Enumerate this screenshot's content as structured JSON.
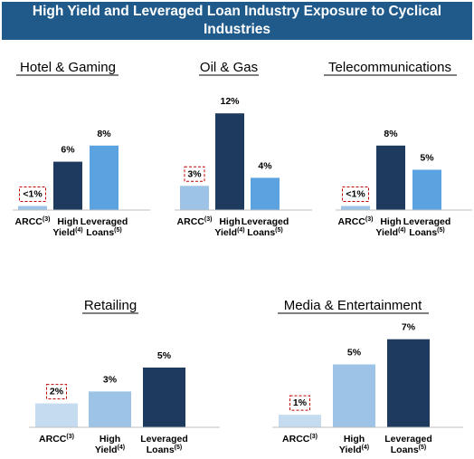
{
  "title_line1": "High Yield and Leveraged Loan Industry Exposure to Cyclical",
  "title_line2": "Industries",
  "colors": {
    "banner": "#1f5a8a",
    "arcc": "#9dc3e6",
    "high_yield": "#1f3a5f",
    "leveraged_loans": "#5ba3e0",
    "light_blue": "#9dc3e6",
    "pale_blue": "#c5dcf0",
    "callout_border": "#c00000"
  },
  "chart_data": [
    {
      "type": "bar",
      "title": "Hotel & Gaming",
      "categories": [
        {
          "name": "ARCC",
          "sup": "(3)"
        },
        {
          "name": "High Yield",
          "sup": "(4)"
        },
        {
          "name": "Leveraged Loans",
          "sup": "(5)"
        }
      ],
      "values": [
        0.5,
        6,
        8
      ],
      "labels": [
        "<1%",
        "6%",
        "8%"
      ],
      "colors": [
        "#9dc3e6",
        "#1f3a5f",
        "#5ba3e0"
      ],
      "callout_index": 0
    },
    {
      "type": "bar",
      "title": "Oil & Gas",
      "categories": [
        {
          "name": "ARCC",
          "sup": "(3)"
        },
        {
          "name": "High Yield",
          "sup": "(4)"
        },
        {
          "name": "Leveraged Loans",
          "sup": "(5)"
        }
      ],
      "values": [
        3,
        12,
        4
      ],
      "labels": [
        "3%",
        "12%",
        "4%"
      ],
      "colors": [
        "#9dc3e6",
        "#1f3a5f",
        "#5ba3e0"
      ],
      "callout_index": 0
    },
    {
      "type": "bar",
      "title": "Telecommunications",
      "categories": [
        {
          "name": "ARCC",
          "sup": "(3)"
        },
        {
          "name": "High Yield",
          "sup": "(4)"
        },
        {
          "name": "Leveraged Loans",
          "sup": "(5)"
        }
      ],
      "values": [
        0.5,
        8,
        5
      ],
      "labels": [
        "<1%",
        "8%",
        "5%"
      ],
      "colors": [
        "#9dc3e6",
        "#1f3a5f",
        "#5ba3e0"
      ],
      "callout_index": 0
    },
    {
      "type": "bar",
      "title": "Retailing",
      "categories": [
        {
          "name": "ARCC",
          "sup": "(3)"
        },
        {
          "name": "High Yield",
          "sup": "(4)"
        },
        {
          "name": "Leveraged Loans",
          "sup": "(5)"
        }
      ],
      "values": [
        2,
        3,
        5
      ],
      "labels": [
        "2%",
        "3%",
        "5%"
      ],
      "colors": [
        "#c5dcf0",
        "#9dc3e6",
        "#1f3a5f"
      ],
      "callout_index": 0
    },
    {
      "type": "bar",
      "title": "Media & Entertainment",
      "categories": [
        {
          "name": "ARCC",
          "sup": "(3)"
        },
        {
          "name": "High Yield",
          "sup": "(4)"
        },
        {
          "name": "Leveraged Loans",
          "sup": "(5)"
        }
      ],
      "values": [
        1,
        5,
        7
      ],
      "labels": [
        "1%",
        "5%",
        "7%"
      ],
      "colors": [
        "#c5dcf0",
        "#9dc3e6",
        "#1f3a5f"
      ],
      "callout_index": 0
    }
  ]
}
